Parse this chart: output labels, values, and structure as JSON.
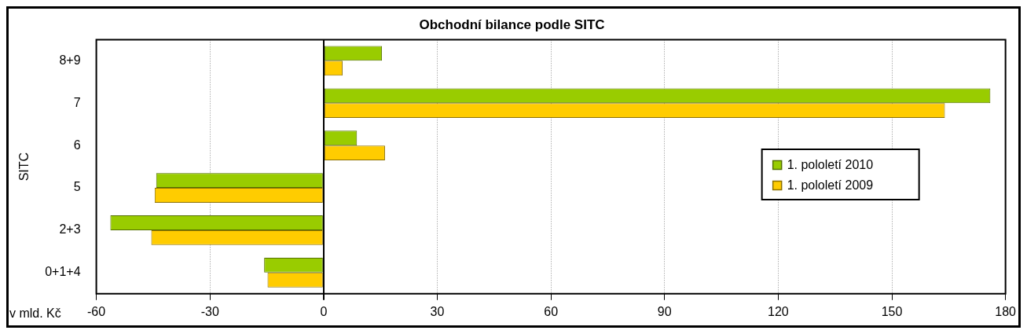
{
  "chart_data": {
    "type": "bar",
    "orientation": "horizontal",
    "title": "Obchodní bilance podle SITC",
    "xlabel": "v mld. Kč",
    "ylabel": "SITC",
    "categories": [
      "8+9",
      "7",
      "6",
      "5",
      "2+3",
      "0+1+4"
    ],
    "series": [
      {
        "name": "1. pololetí 2010",
        "color": "#99cc00",
        "values": [
          15.4,
          176,
          8.8,
          -44.2,
          -56.3,
          -15.7
        ]
      },
      {
        "name": "1. pololetí 2009",
        "color": "#ffcc00",
        "values": [
          5.0,
          164,
          16.2,
          -44.6,
          -45.5,
          -14.8
        ]
      }
    ],
    "xlim": [
      -60,
      180
    ],
    "xticks": [
      -60,
      -30,
      0,
      30,
      60,
      90,
      120,
      150,
      180
    ],
    "grid": "x",
    "legend": "right"
  }
}
